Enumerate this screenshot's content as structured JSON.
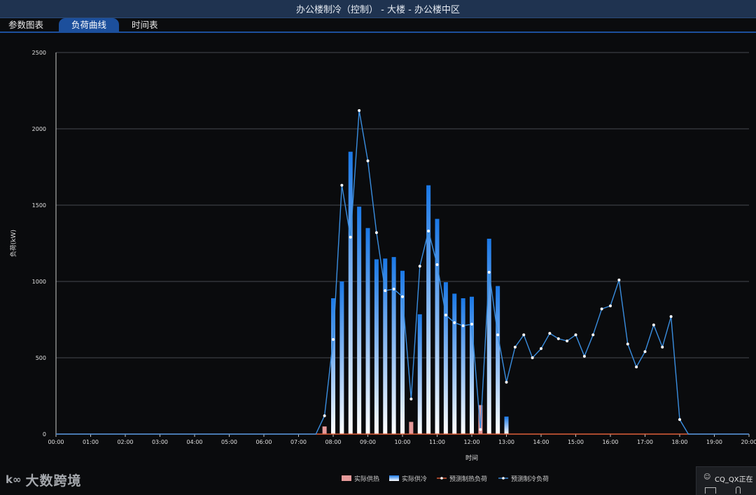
{
  "window": {
    "title": "办公楼制冷（控制） - 大楼 - 办公楼中区"
  },
  "tabs": [
    {
      "label": "参数图表",
      "active": false
    },
    {
      "label": "负荷曲线",
      "active": true
    },
    {
      "label": "时间表",
      "active": false
    }
  ],
  "watermark": {
    "logo": "k∞",
    "text": "大数跨境"
  },
  "user_popup": {
    "label": "CQ_QX正在"
  },
  "chart_data": {
    "type": "bar",
    "title": "",
    "xlabel": "时间",
    "ylabel": "负荷(kW)",
    "ylim": [
      0,
      2500
    ],
    "yticks": [
      0,
      500,
      1000,
      1500,
      2000,
      2500
    ],
    "xlim_hours": [
      0,
      20
    ],
    "xticks": [
      "00:00",
      "01:00",
      "02:00",
      "03:00",
      "04:00",
      "05:00",
      "06:00",
      "07:00",
      "08:00",
      "09:00",
      "10:00",
      "11:00",
      "12:00",
      "13:00",
      "14:00",
      "15:00",
      "16:00",
      "17:00",
      "18:00",
      "19:00",
      "20:00"
    ],
    "grid": "horizontal",
    "legend_position": "bottom-center",
    "colors": {
      "background": "#0a0b0d",
      "grid": "#5a5e66",
      "actual_heat": "#e69a9a",
      "actual_cool_top": "#1a78e6",
      "actual_cool_bottom": "#ffffff",
      "pred_heat": "#e0603a",
      "pred_cool": "#3a8ee0"
    },
    "series": [
      {
        "name": "实际供热",
        "kind": "bar",
        "x": [
          "07:45",
          "10:15",
          "12:15"
        ],
        "values": [
          50,
          80,
          190
        ]
      },
      {
        "name": "实际供冷",
        "kind": "bar",
        "x": [
          "08:00",
          "08:15",
          "08:30",
          "08:45",
          "09:00",
          "09:15",
          "09:30",
          "09:45",
          "10:00",
          "10:30",
          "10:45",
          "11:00",
          "11:15",
          "11:30",
          "11:45",
          "12:00",
          "12:30",
          "12:45",
          "13:00"
        ],
        "values": [
          890,
          1000,
          1850,
          1490,
          1350,
          1145,
          1150,
          1160,
          1070,
          785,
          1630,
          1410,
          995,
          920,
          890,
          900,
          1280,
          970,
          115
        ]
      },
      {
        "name": "预测制热负荷",
        "kind": "line",
        "x": [
          "00:00",
          "20:00"
        ],
        "values": [
          0,
          0
        ]
      },
      {
        "name": "预测制冷负荷",
        "kind": "line",
        "x": [
          "00:00",
          "07:30",
          "07:45",
          "08:00",
          "08:15",
          "08:30",
          "08:45",
          "09:00",
          "09:15",
          "09:30",
          "09:45",
          "10:00",
          "10:15",
          "10:30",
          "10:45",
          "11:00",
          "11:15",
          "11:30",
          "11:45",
          "12:00",
          "12:15",
          "12:30",
          "12:45",
          "13:00",
          "13:15",
          "13:30",
          "13:45",
          "14:00",
          "14:15",
          "14:30",
          "14:45",
          "15:00",
          "15:15",
          "15:30",
          "15:45",
          "16:00",
          "16:15",
          "16:30",
          "16:45",
          "17:00",
          "17:15",
          "17:30",
          "17:45",
          "18:00",
          "18:15",
          "20:00"
        ],
        "values": [
          0,
          0,
          120,
          620,
          1630,
          1290,
          2120,
          1790,
          1320,
          940,
          950,
          900,
          230,
          1100,
          1330,
          1110,
          780,
          730,
          710,
          720,
          30,
          1060,
          650,
          340,
          570,
          650,
          500,
          560,
          660,
          625,
          610,
          650,
          510,
          650,
          820,
          840,
          1010,
          590,
          440,
          540,
          715,
          570,
          770,
          95,
          0,
          0
        ]
      }
    ]
  }
}
